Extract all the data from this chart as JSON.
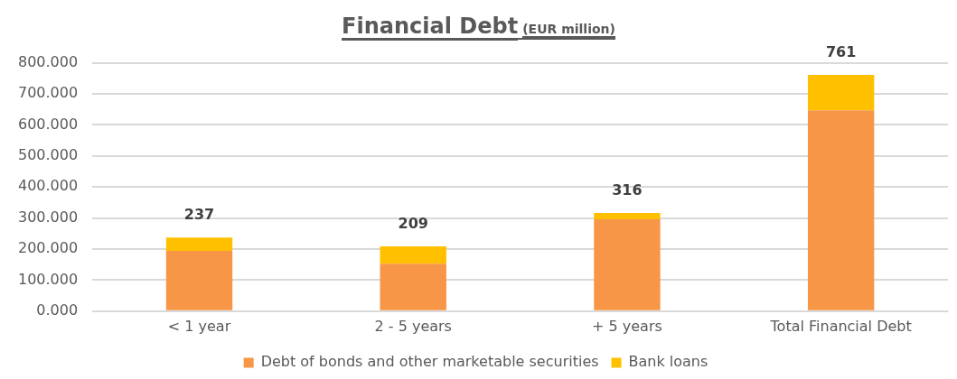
{
  "chart_data": {
    "type": "bar",
    "title": "Financial Debt",
    "subtitle": "(EUR million)",
    "categories": [
      "< 1 year",
      "2 - 5 years",
      "+ 5 years",
      "Total Financial Debt"
    ],
    "series": [
      {
        "name": "Debt of bonds and other marketable securities",
        "color": "#f79646",
        "values": [
          194,
          153,
          296,
          647
        ]
      },
      {
        "name": "Bank loans",
        "color": "#ffc000",
        "values": [
          43,
          56,
          20,
          114
        ]
      }
    ],
    "stacked": true,
    "totals": [
      "237",
      "209",
      "316",
      "761"
    ],
    "ylim": [
      0,
      800
    ],
    "yticks": [
      {
        "value": 0,
        "label": "0.000"
      },
      {
        "value": 100,
        "label": "100.000"
      },
      {
        "value": 200,
        "label": "200.000"
      },
      {
        "value": 300,
        "label": "300.000"
      },
      {
        "value": 400,
        "label": "400.000"
      },
      {
        "value": 500,
        "label": "500.000"
      },
      {
        "value": 600,
        "label": "600.000"
      },
      {
        "value": 700,
        "label": "700.000"
      },
      {
        "value": 800,
        "label": "800.000"
      }
    ],
    "grid": "y",
    "legend": "bottom"
  }
}
